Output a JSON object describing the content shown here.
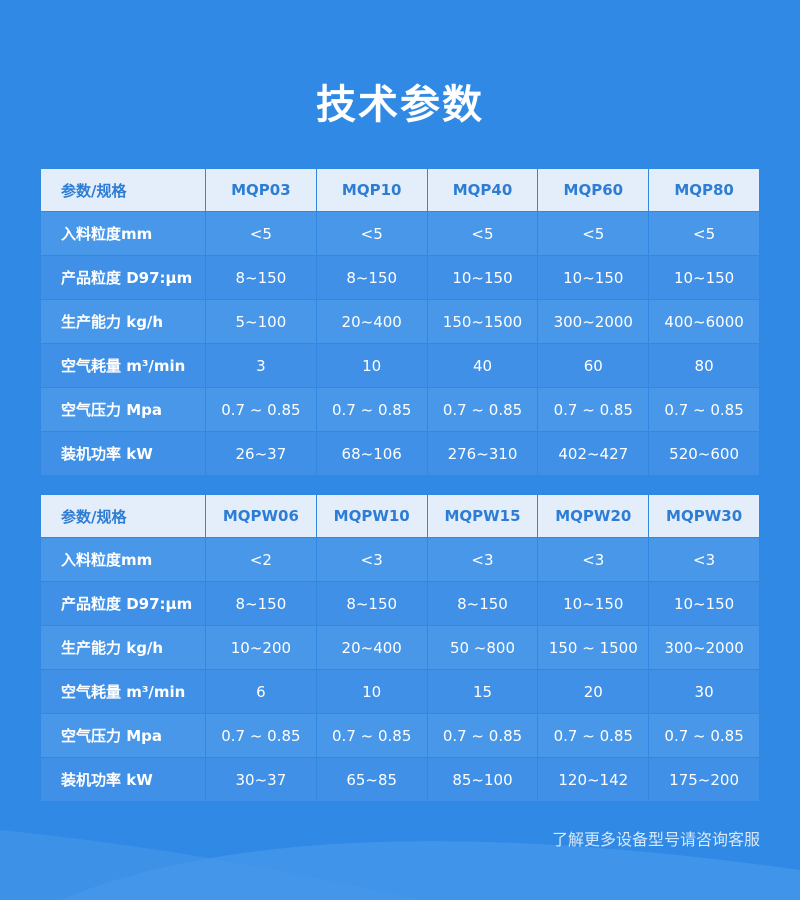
{
  "title": "技术参数",
  "tables": [
    {
      "header": [
        "参数/规格",
        "MQP03",
        "MQP10",
        "MQP40",
        "MQP60",
        "MQP80"
      ],
      "rows": [
        [
          "入料粒度mm",
          "<5",
          "<5",
          "<5",
          "<5",
          "<5"
        ],
        [
          "产品粒度 D97:μm",
          "8~150",
          "8~150",
          "10~150",
          "10~150",
          "10~150"
        ],
        [
          "生产能力 kg/h",
          "5~100",
          "20~400",
          "150~1500",
          "300~2000",
          "400~6000"
        ],
        [
          "空气耗量 m³/min",
          "3",
          "10",
          "40",
          "60",
          "80"
        ],
        [
          "空气压力 Mpa",
          "0.7 ~ 0.85",
          "0.7 ~ 0.85",
          "0.7 ~ 0.85",
          "0.7 ~ 0.85",
          "0.7 ~ 0.85"
        ],
        [
          "装机功率 kW",
          "26~37",
          "68~106",
          "276~310",
          "402~427",
          "520~600"
        ]
      ]
    },
    {
      "header": [
        "参数/规格",
        "MQPW06",
        "MQPW10",
        "MQPW15",
        "MQPW20",
        "MQPW30"
      ],
      "rows": [
        [
          "入料粒度mm",
          "<2",
          "<3",
          "<3",
          "<3",
          "<3"
        ],
        [
          "产品粒度 D97:μm",
          "8~150",
          "8~150",
          "8~150",
          "10~150",
          "10~150"
        ],
        [
          "生产能力 kg/h",
          "10~200",
          "20~400",
          "50 ~800",
          "150 ~ 1500",
          "300~2000"
        ],
        [
          "空气耗量 m³/min",
          "6",
          "10",
          "15",
          "20",
          "30"
        ],
        [
          "空气压力 Mpa",
          "0.7 ~ 0.85",
          "0.7 ~ 0.85",
          "0.7 ~ 0.85",
          "0.7 ~ 0.85",
          "0.7 ~ 0.85"
        ],
        [
          "装机功率 kW",
          "30~37",
          "65~85",
          "85~100",
          "120~142",
          "175~200"
        ]
      ]
    }
  ],
  "footer_note": "了解更多设备型号请咨询客服"
}
